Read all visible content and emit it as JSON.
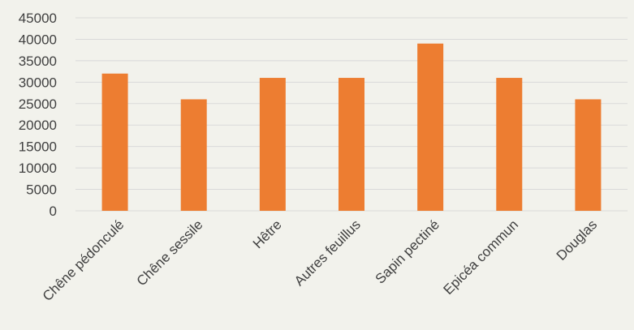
{
  "chart_data": {
    "type": "bar",
    "categories": [
      "Chêne pédonculé",
      "Chêne sessile",
      "Hêtre",
      "Autres feuillus",
      "Sapin pectiné",
      "Epicéa commun",
      "Douglas"
    ],
    "values": [
      32000,
      26000,
      31000,
      31000,
      39000,
      31000,
      26000
    ],
    "y_ticks": [
      "0",
      "5000",
      "10000",
      "15000",
      "20000",
      "25000",
      "30000",
      "35000",
      "40000",
      "45000"
    ],
    "ylim": [
      0,
      45000
    ],
    "grid": true,
    "legend": "none",
    "bar_color": "#ed7d31",
    "title": "",
    "xlabel": "",
    "ylabel": ""
  }
}
